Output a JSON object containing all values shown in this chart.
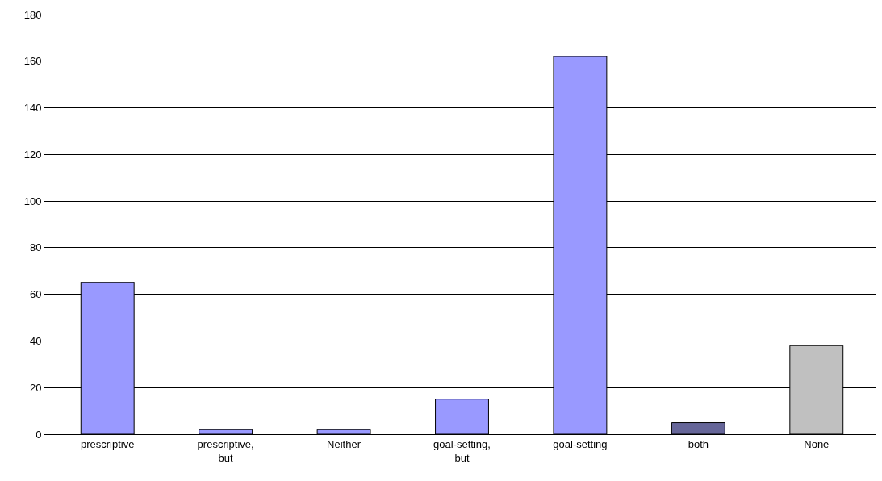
{
  "chart_data": {
    "type": "bar",
    "categories": [
      "prescriptive",
      "prescriptive,\nbut",
      "Neither",
      "goal-setting,\nbut",
      "goal-setting",
      "both",
      "None"
    ],
    "values": [
      65,
      2,
      2,
      15,
      162,
      5,
      38
    ],
    "colors": [
      "#9999ff",
      "#9999ff",
      "#9999ff",
      "#9999ff",
      "#9999ff",
      "#666699",
      "#c0c0c0"
    ],
    "ylim": [
      0,
      180
    ],
    "yticks": [
      0,
      20,
      40,
      60,
      80,
      100,
      120,
      140,
      160,
      180
    ],
    "grid": "y",
    "legend": false
  }
}
